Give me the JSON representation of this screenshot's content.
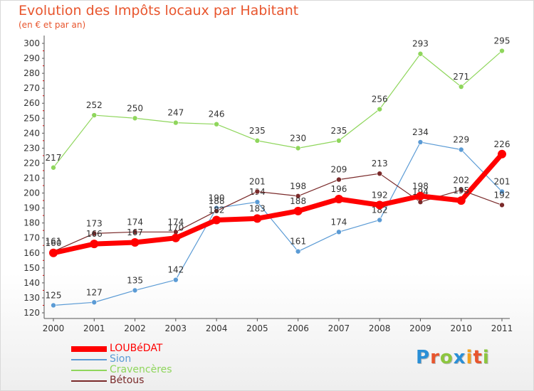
{
  "header": {
    "title": "Evolution des Impôts locaux par Habitant",
    "subtitle": "(en € et par an)"
  },
  "brand": {
    "letters": [
      "P",
      "r",
      "o",
      "x",
      "i",
      "t",
      "i"
    ],
    "colors": [
      "#2a8fd6",
      "#e8552d",
      "#8cc63f",
      "#2a8fd6",
      "#f4a21f",
      "#e8552d",
      "#8cc63f"
    ]
  },
  "chart_data": {
    "type": "line",
    "x": [
      "2000",
      "2001",
      "2002",
      "2003",
      "2004",
      "2005",
      "2006",
      "2007",
      "2008",
      "2009",
      "2010",
      "2011"
    ],
    "ylim": [
      120,
      300
    ],
    "yticks": [
      120,
      130,
      140,
      150,
      160,
      170,
      180,
      190,
      200,
      210,
      220,
      230,
      240,
      250,
      260,
      270,
      280,
      290,
      300
    ],
    "grid": false,
    "legend_position": "bottom-left",
    "series": [
      {
        "name": "LOUBéDAT",
        "color": "#ff0000",
        "values": [
          160,
          166,
          167,
          170,
          182,
          183,
          188,
          196,
          192,
          198,
          195,
          226
        ]
      },
      {
        "name": "Sion",
        "color": "#5b9bd5",
        "values": [
          125,
          127,
          135,
          142,
          190,
          194,
          161,
          174,
          182,
          234,
          229,
          201
        ]
      },
      {
        "name": "Cravencères",
        "color": "#8fd65c",
        "values": [
          217,
          252,
          250,
          247,
          246,
          235,
          230,
          235,
          256,
          293,
          271,
          295
        ]
      },
      {
        "name": "Bétous",
        "color": "#7a2a2a",
        "values": [
          161,
          173,
          174,
          174,
          188,
          201,
          198,
          209,
          213,
          194,
          202,
          192
        ]
      }
    ]
  }
}
